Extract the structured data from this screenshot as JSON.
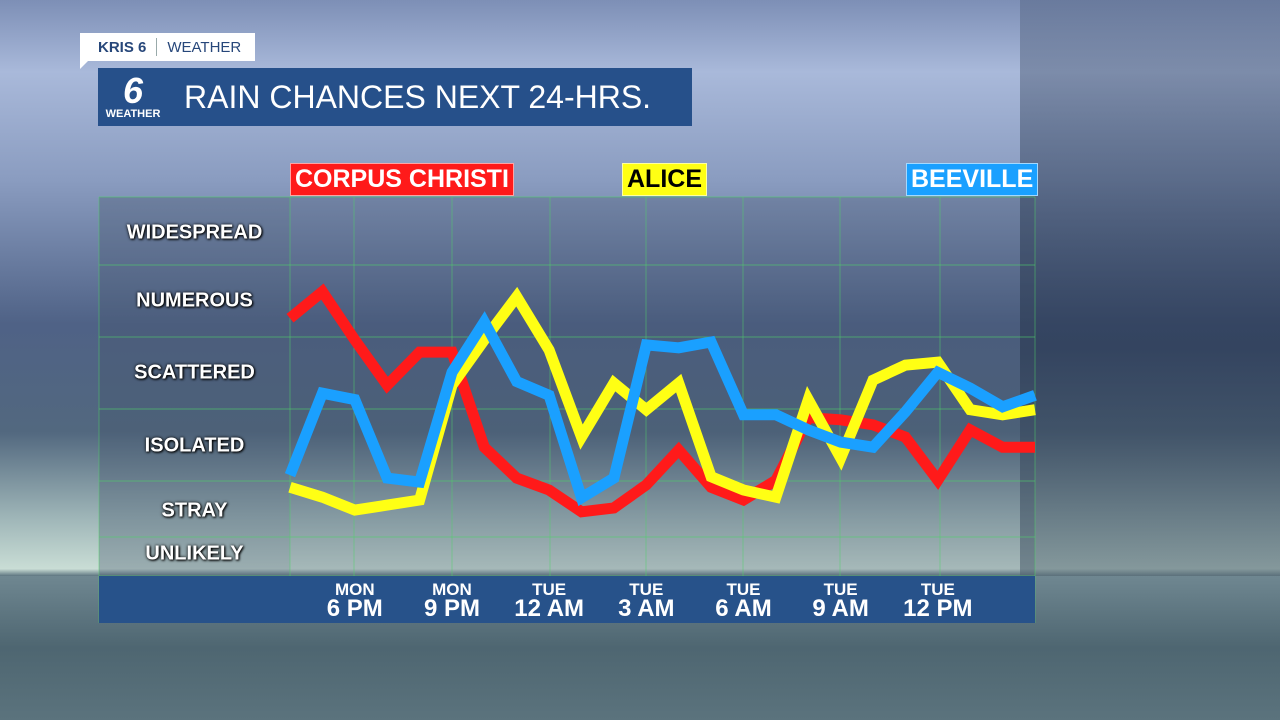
{
  "brand": {
    "name": "KRIS 6",
    "section": "WEATHER"
  },
  "logo": {
    "number": "6",
    "text": "WEATHER"
  },
  "title": "RAIN CHANCES NEXT 24-HRS.",
  "colors": {
    "corpus_christi": "#ff1a1a",
    "alice": "#ffff14",
    "beeville": "#1aa0ff",
    "bar": "#27528a",
    "grid": "#4fcf6a"
  },
  "chart_data": {
    "type": "line",
    "title": "RAIN CHANCES NEXT 24-HRS.",
    "y_categories": [
      "UNLIKELY",
      "STRAY",
      "ISOLATED",
      "SCATTERED",
      "NUMEROUS",
      "WIDESPREAD"
    ],
    "ylim": [
      0,
      6
    ],
    "grid": true,
    "legend_placement": "top",
    "x": [
      "Mon 4 PM",
      "Mon 5 PM",
      "Mon 6 PM",
      "Mon 7 PM",
      "Mon 8 PM",
      "Mon 9 PM",
      "Mon 10 PM",
      "Mon 11 PM",
      "Tue 12 AM",
      "Tue 1 AM",
      "Tue 2 AM",
      "Tue 3 AM",
      "Tue 4 AM",
      "Tue 5 AM",
      "Tue 6 AM",
      "Tue 7 AM",
      "Tue 8 AM",
      "Tue 9 AM",
      "Tue 10 AM",
      "Tue 11 AM",
      "Tue 12 PM",
      "Tue 1 PM",
      "Tue 2 PM",
      "Tue 3 PM"
    ],
    "x_ticks": [
      {
        "day": "MON",
        "time": "6 PM",
        "at": "Mon 6 PM"
      },
      {
        "day": "MON",
        "time": "9 PM",
        "at": "Mon 9 PM"
      },
      {
        "day": "TUE",
        "time": "12 AM",
        "at": "Tue 12 AM"
      },
      {
        "day": "TUE",
        "time": "3 AM",
        "at": "Tue 3 AM"
      },
      {
        "day": "TUE",
        "time": "6 AM",
        "at": "Tue 6 AM"
      },
      {
        "day": "TUE",
        "time": "9 AM",
        "at": "Tue 9 AM"
      },
      {
        "day": "TUE",
        "time": "12 PM",
        "at": "Tue 12 PM"
      }
    ],
    "series": [
      {
        "name": "CORPUS CHRISTI",
        "color": "#ff1a1a",
        "values": [
          4.26,
          4.63,
          3.96,
          3.33,
          3.79,
          3.79,
          2.47,
          2.04,
          1.84,
          1.45,
          1.52,
          1.93,
          2.43,
          1.89,
          1.66,
          2.01,
          2.88,
          2.85,
          2.78,
          2.61,
          2.01,
          2.71,
          2.47,
          2.47
        ]
      },
      {
        "name": "ALICE",
        "color": "#ffff14",
        "values": [
          1.89,
          1.71,
          1.48,
          1.57,
          1.66,
          3.33,
          3.96,
          4.56,
          3.82,
          2.61,
          3.36,
          2.99,
          3.36,
          2.06,
          1.84,
          1.71,
          3.13,
          2.32,
          3.4,
          3.61,
          3.65,
          2.99,
          2.92,
          2.99
        ]
      },
      {
        "name": "BEEVILLE",
        "color": "#1aa0ff",
        "values": [
          2.08,
          3.22,
          3.13,
          2.04,
          1.98,
          3.51,
          4.21,
          3.38,
          3.19,
          1.7,
          2.04,
          3.89,
          3.85,
          3.93,
          2.92,
          2.92,
          2.71,
          2.54,
          2.47,
          2.96,
          3.51,
          3.29,
          3.03,
          3.19
        ]
      }
    ]
  }
}
